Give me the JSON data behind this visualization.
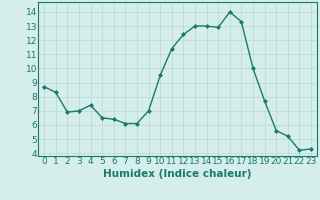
{
  "x": [
    0,
    1,
    2,
    3,
    4,
    5,
    6,
    7,
    8,
    9,
    10,
    11,
    12,
    13,
    14,
    15,
    16,
    17,
    18,
    19,
    20,
    21,
    22,
    23
  ],
  "y": [
    8.7,
    8.3,
    6.9,
    7.0,
    7.4,
    6.5,
    6.4,
    6.1,
    6.1,
    7.0,
    9.5,
    11.4,
    12.4,
    13.0,
    13.0,
    12.9,
    14.0,
    13.3,
    10.0,
    7.7,
    5.6,
    5.2,
    4.2,
    4.3
  ],
  "line_color": "#1a7a6a",
  "marker": "D",
  "marker_size": 2.0,
  "linewidth": 1.0,
  "xlabel": "Humidex (Indice chaleur)",
  "xlim": [
    -0.5,
    23.5
  ],
  "ylim": [
    3.8,
    14.7
  ],
  "yticks": [
    4,
    5,
    6,
    7,
    8,
    9,
    10,
    11,
    12,
    13,
    14
  ],
  "xticks": [
    0,
    1,
    2,
    3,
    4,
    5,
    6,
    7,
    8,
    9,
    10,
    11,
    12,
    13,
    14,
    15,
    16,
    17,
    18,
    19,
    20,
    21,
    22,
    23
  ],
  "bg_color": "#d5eeec",
  "grid_color": "#b8d8d4",
  "tick_fontsize": 6.5,
  "xlabel_fontsize": 7.5
}
